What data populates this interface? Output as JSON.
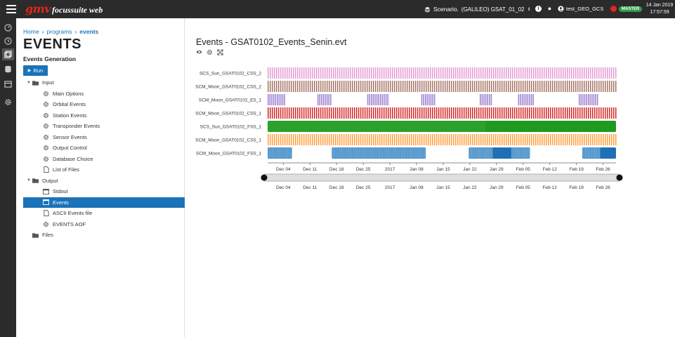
{
  "topbar": {
    "logo": "gmv",
    "app_name": "focussuite web",
    "scenario_label": "Scenario.",
    "scenario_value": "(GALILEO) GSAT_01_02",
    "user": "test_GEO_GCS",
    "master_label": "MASTER",
    "date": "14 Jan 2019",
    "time": "17:57:59"
  },
  "rail": {
    "icons": [
      "dashboard-icon",
      "history-icon",
      "windows-icon",
      "database-icon",
      "calendar-icon",
      "settings-icon"
    ]
  },
  "breadcrumb": {
    "home": "Home",
    "programs": "programs",
    "current": "events"
  },
  "page": {
    "title": "EVENTS",
    "subtitle": "Events Generation",
    "run_label": "Run"
  },
  "tree": [
    {
      "label": "Input",
      "level": 1,
      "type": "folder",
      "expanded": true
    },
    {
      "label": "Main Options",
      "level": 2,
      "type": "gear"
    },
    {
      "label": "Orbital Events",
      "level": 2,
      "type": "gear"
    },
    {
      "label": "Station Events",
      "level": 2,
      "type": "gear"
    },
    {
      "label": "Transponder Events",
      "level": 2,
      "type": "gear"
    },
    {
      "label": "Sensor Events",
      "level": 2,
      "type": "gear"
    },
    {
      "label": "Output Control",
      "level": 2,
      "type": "gear"
    },
    {
      "label": "Database Choice",
      "level": 2,
      "type": "gear"
    },
    {
      "label": "List of Files",
      "level": 2,
      "type": "file"
    },
    {
      "label": "Output",
      "level": 1,
      "type": "folder",
      "expanded": true
    },
    {
      "label": "Stdout",
      "level": 2,
      "type": "window"
    },
    {
      "label": "Events",
      "level": 2,
      "type": "window",
      "selected": true
    },
    {
      "label": "ASCII Events file",
      "level": 2,
      "type": "file"
    },
    {
      "label": "EVENTS AOF",
      "level": 2,
      "type": "gear"
    },
    {
      "label": "Files",
      "level": 1,
      "type": "folder",
      "expanded": false
    }
  ],
  "main": {
    "title": "Events - GSAT0102_Events_Senin.evt",
    "tool_icons": [
      "eye-icon",
      "gear-icon",
      "expand-icon"
    ]
  },
  "chart_data": {
    "type": "timeline",
    "x_ticks": [
      "Dec 04",
      "Dec 11",
      "Dec 18",
      "Dec 25",
      "2017",
      "Jan 08",
      "Jan 15",
      "Jan 22",
      "Jan 29",
      "Feb 05",
      "Feb 12",
      "Feb 19",
      "Feb 26"
    ],
    "rows": [
      {
        "label": "SCS_Sun_GSAT0102_CSS_2",
        "color": "#e59ad6",
        "segments": [
          [
            0,
            1
          ]
        ],
        "pattern": "dense"
      },
      {
        "label": "SCM_Moon_GSAT0102_CSS_2",
        "color": "#a67466",
        "segments": [
          [
            0,
            1
          ]
        ],
        "pattern": "dense"
      },
      {
        "label": "SCM_Moon_GSAT0102_ES_1",
        "color": "#9b7fd0",
        "segments": [
          [
            0.0,
            0.05
          ],
          [
            0.143,
            0.183
          ],
          [
            0.286,
            0.345
          ],
          [
            0.441,
            0.481
          ],
          [
            0.609,
            0.645
          ],
          [
            0.719,
            0.763
          ],
          [
            0.893,
            0.949
          ]
        ],
        "pattern": "sparse"
      },
      {
        "label": "SCM_Moon_GSAT0102_CSS_1",
        "color": "#d62728",
        "segments": [
          [
            0,
            1
          ]
        ],
        "pattern": "dense"
      },
      {
        "label": "SCS_Sun_GSAT0102_FSS_1",
        "color": "#2ca02c",
        "segments": [
          [
            0,
            1
          ]
        ],
        "pattern": "solid"
      },
      {
        "label": "SCM_Moon_GSAT0102_CSS_1",
        "color": "#ff9f3e",
        "segments": [
          [
            0,
            1
          ]
        ],
        "pattern": "dense"
      },
      {
        "label": "SCM_Moon_GSAT0102_FSS_1",
        "color": "#2d7fc1",
        "segments": [
          [
            0.0,
            0.07
          ],
          [
            0.184,
            0.454
          ],
          [
            0.577,
            0.753
          ],
          [
            0.903,
            0.999
          ]
        ],
        "pattern": "blocks"
      }
    ]
  }
}
